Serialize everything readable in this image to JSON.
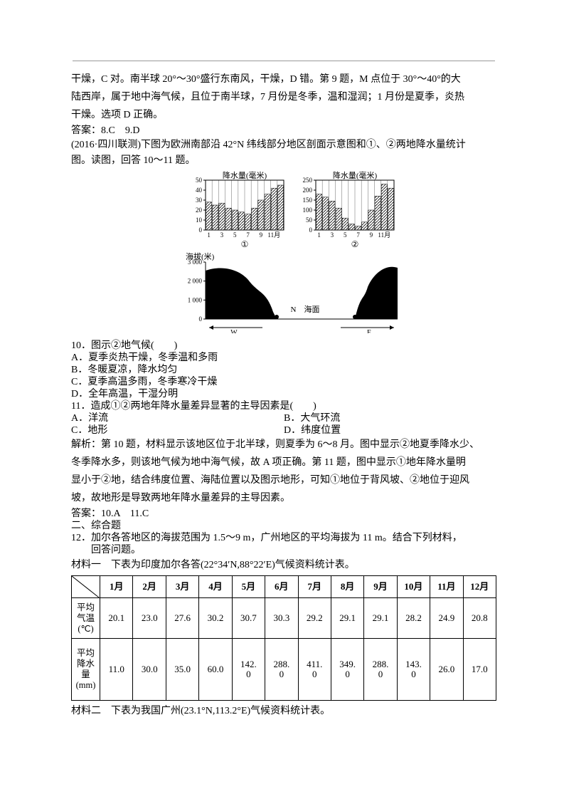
{
  "top": {
    "l1": "干燥，C 对。南半球 20°～30°盛行东南风，干燥，D 错。第 9 题，M 点位于 30°～40°的大",
    "l2": "陆西岸，属于地中海气候，且位于南半球，7 月份是冬季，温和湿润；1 月份是夏季，炎热",
    "l3": "干燥。选项 D 正确。",
    "l4": "答案：8.C　9.D",
    "l5": "(2016·四川联测)下图为欧洲南部沿 42°N 纬线部分地区剖面示意图和①、②两地降水量统计",
    "l6": "图。读图，回答 10～11 题。"
  },
  "figure": {
    "chart1": {
      "ylabel": "降水量(毫米)",
      "ymax": 50,
      "ystep": 10,
      "values": [
        28,
        25,
        27,
        22,
        20,
        18,
        16,
        22,
        30,
        36,
        42,
        45
      ],
      "xlabels": [
        "1",
        "3",
        "5",
        "7",
        "9",
        "11月"
      ],
      "marker": "①",
      "bar_color": "#000000",
      "background_color": "#ffffff"
    },
    "chart2": {
      "ylabel": "降水量(毫米)",
      "ymax": 250,
      "ystep": 50,
      "values": [
        180,
        165,
        145,
        110,
        60,
        30,
        20,
        40,
        100,
        170,
        230,
        210
      ],
      "xlabels": [
        "1",
        "3",
        "5",
        "7",
        "9",
        "11月"
      ],
      "marker": "②",
      "bar_color": "#000000",
      "background_color": "#ffffff"
    },
    "profile": {
      "ylabel": "海拔(米)",
      "yticks": [
        "0",
        "1 000",
        "2 000",
        "3 000"
      ],
      "sea_label": "N　海面",
      "west": "W",
      "east": "E",
      "marker1": "①",
      "marker2": "②"
    }
  },
  "q10": {
    "stem": "10．图示②地气候(　　)",
    "a": "A．夏季炎热干燥，冬季温和多雨",
    "b": "B．冬暖夏凉，降水均匀",
    "c": "C．夏季高温多雨，冬季寒冷干燥",
    "d": "D．全年高温，干湿分明"
  },
  "q11": {
    "stem": "11．造成①②两地年降水量差异显著的主导因素是(　　)",
    "a": "A．洋流",
    "b": "B．大气环流",
    "c": "C．地形",
    "d": "D．纬度位置"
  },
  "analysis": {
    "l1": "解析：第 10 题，材料显示该地区位于北半球，则夏季为 6～8 月。图中显示②地夏季降水少、",
    "l2": "冬季降水多，则该地气候为地中海气候，故 A 项正确。第 11 题，图中显示①地年降水量明",
    "l3": "显小于②地，结合纬度位置、海陆位置以及图示地形，可知①地位于背风坡、②地位于迎风",
    "l4": "坡，故地形是导致两地年降水量差异的主导因素。",
    "l5": "答案：10.A　11.C",
    "l6": "二、综合题",
    "l7": "12．加尔各答地区的海拔范围为 1.5～9 m，广州地区的平均海拔为 11 m。结合下列材料，",
    "l8": "回答问题。"
  },
  "mat1": "材料一　下表为印度加尔各答(22°34′N,88°22′E)气候资料统计表。",
  "table1": {
    "months": [
      "1月",
      "2月",
      "3月",
      "4月",
      "5月",
      "6月",
      "7月",
      "8月",
      "9月",
      "10月",
      "11月",
      "12月"
    ],
    "row1_hdr": "平均\n气温\n(℃)",
    "row1": [
      "20.1",
      "23.0",
      "27.6",
      "30.2",
      "30.7",
      "30.3",
      "29.2",
      "29.1",
      "29.1",
      "28.2",
      "24.9",
      "20.8"
    ],
    "row2_hdr": "平均\n降水\n量\n(mm)",
    "row2": [
      "11.0",
      "30.0",
      "35.0",
      "60.0",
      "142.\n0",
      "288.\n0",
      "411.\n0",
      "349.\n0",
      "288.\n0",
      "143.\n0",
      "26.0",
      "17.0"
    ]
  },
  "mat2": "材料二　下表为我国广州(23.1°N,113.2°E)气候资料统计表。"
}
